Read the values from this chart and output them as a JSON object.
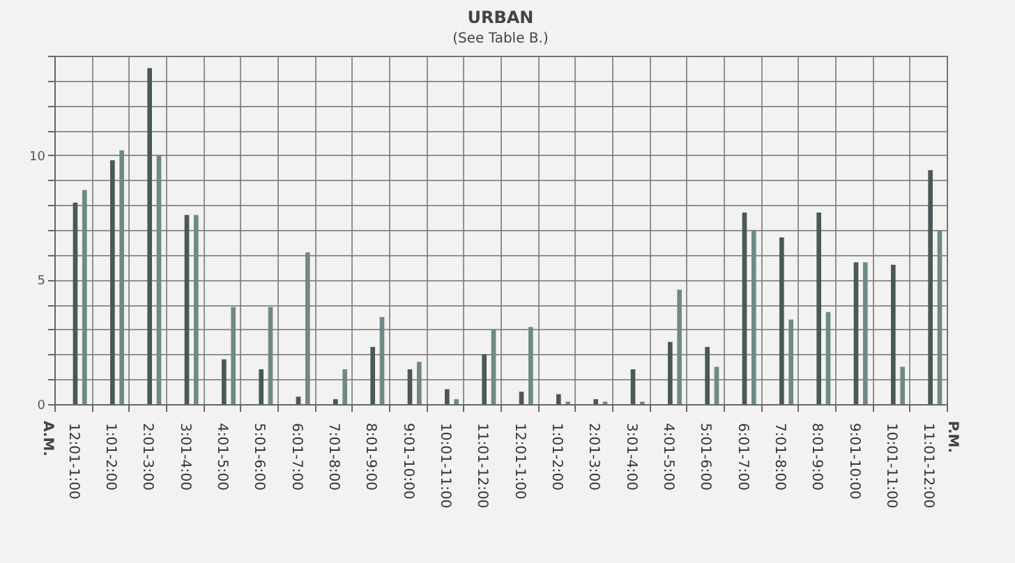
{
  "chart_data": {
    "type": "bar",
    "title": "URBAN",
    "subtitle": "(See Table B.)",
    "categories": [
      "12:01-1:00",
      "1:01-2:00",
      "2:01-3:00",
      "3:01-4:00",
      "4:01-5:00",
      "5:01-6:00",
      "6:01-7:00",
      "7:01-8:00",
      "8:01-9:00",
      "9:01-10:00",
      "10:01-11:00",
      "11:01-12:00",
      "12:01-1:00",
      "1:01-2:00",
      "2:01-3:00",
      "3:01-4:00",
      "4:01-5:00",
      "5:01-6:00",
      "6:01-7:00",
      "7:01-8:00",
      "8:01-9:00",
      "9:01-10:00",
      "10:01-11:00",
      "11:01-12:00"
    ],
    "series": [
      {
        "color": "#4a5858",
        "values": [
          8.1,
          9.8,
          13.5,
          7.6,
          1.8,
          1.4,
          0.3,
          0.2,
          2.3,
          1.4,
          0.6,
          2.0,
          0.5,
          0.4,
          0.2,
          1.4,
          2.5,
          2.3,
          7.7,
          6.7,
          7.7,
          5.7,
          5.6,
          9.4
        ]
      },
      {
        "color": "#6f8a86",
        "values": [
          8.6,
          10.2,
          10.0,
          7.6,
          3.9,
          3.9,
          6.1,
          1.4,
          3.5,
          1.7,
          0.2,
          3.0,
          3.1,
          0.1,
          0.1,
          0.1,
          4.6,
          1.5,
          7.0,
          3.4,
          3.7,
          5.7,
          1.5,
          7.0
        ]
      }
    ],
    "ylim": [
      0,
      14
    ],
    "yticks": [
      0,
      {
        "value": 1,
        "label": null
      },
      {
        "value": 2,
        "label": null
      },
      {
        "value": 3,
        "label": null
      },
      {
        "value": 4,
        "label": null
      },
      5,
      {
        "value": 6,
        "label": null
      },
      {
        "value": 7,
        "label": null
      },
      {
        "value": 8,
        "label": null
      },
      {
        "value": 9,
        "label": null
      },
      10,
      {
        "value": 11,
        "label": null
      },
      {
        "value": 12,
        "label": null
      },
      {
        "value": 13,
        "label": null
      },
      {
        "value": 14,
        "label": null
      }
    ],
    "grid": true,
    "legend": false,
    "annotations": [
      "A.M.",
      "P.M."
    ]
  }
}
